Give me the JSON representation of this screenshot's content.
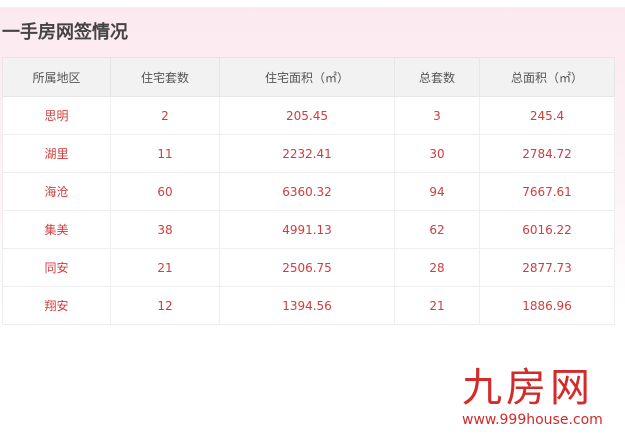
{
  "title": "一手房网签情况",
  "table": {
    "headers": [
      "所属地区",
      "住宅套数",
      "住宅面积（㎡）",
      "总套数",
      "总面积（㎡）"
    ],
    "rows": [
      [
        "思明",
        "2",
        "205.45",
        "3",
        "245.4"
      ],
      [
        "湖里",
        "11",
        "2232.41",
        "30",
        "2784.72"
      ],
      [
        "海沧",
        "60",
        "6360.32",
        "94",
        "7667.61"
      ],
      [
        "集美",
        "38",
        "4991.13",
        "62",
        "6016.22"
      ],
      [
        "同安",
        "21",
        "2506.75",
        "28",
        "2877.73"
      ],
      [
        "翔安",
        "12",
        "1394.56",
        "21",
        "1886.96"
      ]
    ]
  },
  "logo": {
    "mark": "九房网",
    "url": "www.999house.com"
  },
  "colors": {
    "accent": "#d23c3c",
    "panel": "#fbe9ef"
  }
}
